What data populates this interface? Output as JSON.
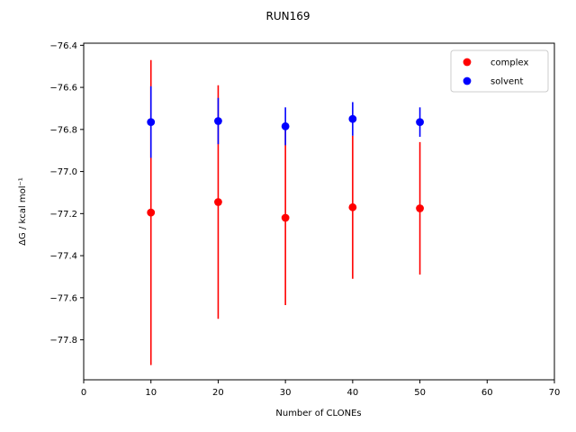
{
  "chart_data": {
    "type": "scatter",
    "title": "RUN169",
    "xlabel": "Number of CLONEs",
    "ylabel": "ΔG / kcal mol⁻¹",
    "xlim": [
      0,
      70
    ],
    "ylim": [
      -77.99,
      -76.39
    ],
    "xticks": [
      0,
      10,
      20,
      30,
      40,
      50,
      60,
      70
    ],
    "yticks": [
      -77.8,
      -77.6,
      -77.4,
      -77.2,
      -77.0,
      -76.8,
      -76.6,
      -76.4
    ],
    "grid": false,
    "legend_position": "top-right",
    "series": [
      {
        "name": "complex",
        "color": "#ff0000",
        "x": [
          10,
          20,
          30,
          40,
          50
        ],
        "y": [
          -77.195,
          -77.145,
          -77.22,
          -77.17,
          -77.175
        ],
        "err": [
          0.725,
          0.555,
          0.415,
          0.34,
          0.315
        ]
      },
      {
        "name": "solvent",
        "color": "#0000ff",
        "x": [
          10,
          20,
          30,
          40,
          50
        ],
        "y": [
          -76.765,
          -76.76,
          -76.785,
          -76.75,
          -76.765
        ],
        "err": [
          0.17,
          0.11,
          0.09,
          0.08,
          0.07
        ]
      }
    ]
  }
}
